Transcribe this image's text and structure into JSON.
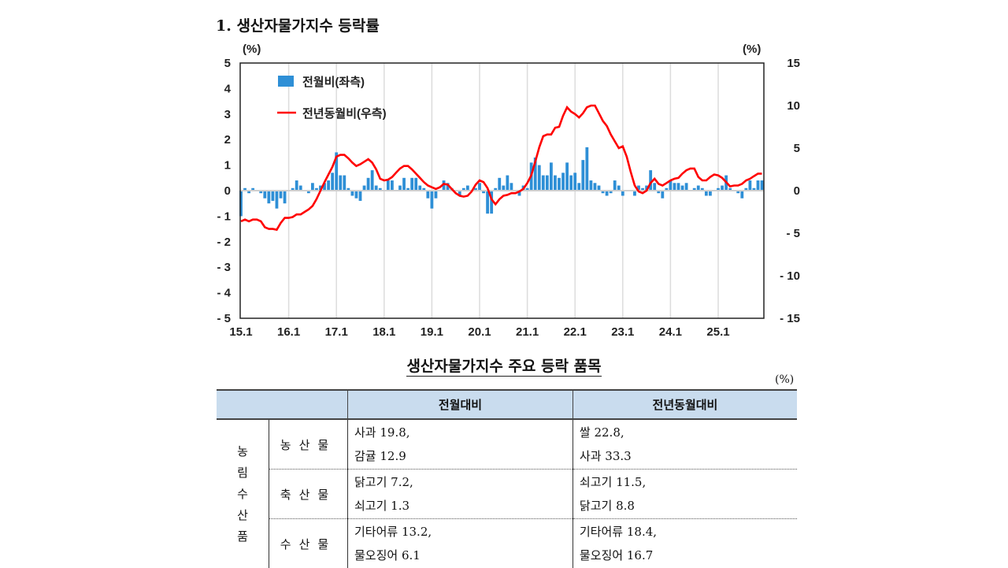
{
  "title": "1. 생산자물가지수 등락률",
  "chart_data": {
    "type": "bar+line",
    "left_axis_unit": "(%)",
    "right_axis_unit": "(%)",
    "ylim_left": [
      -5,
      5
    ],
    "ylim_right": [
      -15,
      15
    ],
    "yticks_left": [
      "5",
      "4",
      "3",
      "2",
      "1",
      "0",
      "-1",
      "-2",
      "-3",
      "-4",
      "-5"
    ],
    "yticks_right": [
      "15",
      "10",
      "5",
      "0",
      "-5",
      "-10",
      "-15"
    ],
    "xticks": [
      "15.1",
      "16.1",
      "17.1",
      "18.1",
      "19.1",
      "20.1",
      "21.1",
      "22.1",
      "23.1",
      "24.1",
      "25.1"
    ],
    "x_start": "2015-01",
    "x_end": "2025-12",
    "grid": "vertical",
    "legend_position": "top-left",
    "series": [
      {
        "name": "전월비(좌측)",
        "type": "bar",
        "axis": "left",
        "color": "#2e8fd6",
        "values": [
          -1.0,
          0.1,
          -0.1,
          0.1,
          0.0,
          -0.1,
          -0.3,
          -0.5,
          -0.4,
          -0.7,
          -0.3,
          -0.5,
          0.0,
          0.1,
          0.4,
          0.2,
          0.0,
          -0.1,
          0.3,
          0.1,
          0.2,
          0.3,
          0.4,
          0.7,
          1.5,
          0.6,
          0.6,
          0.1,
          -0.2,
          -0.3,
          -0.4,
          0.2,
          0.5,
          0.8,
          0.2,
          0.1,
          0.0,
          0.4,
          0.4,
          0.0,
          0.2,
          0.5,
          0.1,
          0.5,
          0.5,
          0.2,
          0.1,
          -0.3,
          -0.7,
          -0.3,
          0.0,
          0.4,
          0.3,
          0.1,
          0.0,
          -0.2,
          0.1,
          0.2,
          0.0,
          0.1,
          0.3,
          -0.1,
          -0.9,
          -0.9,
          0.1,
          0.5,
          0.2,
          0.6,
          0.3,
          0.0,
          -0.2,
          0.2,
          0.1,
          1.1,
          1.3,
          1.0,
          0.6,
          0.6,
          1.1,
          0.6,
          0.5,
          0.7,
          1.1,
          0.6,
          0.7,
          0.3,
          1.2,
          1.7,
          0.4,
          0.3,
          0.2,
          -0.1,
          -0.2,
          -0.1,
          0.4,
          0.2,
          -0.2,
          0.0,
          0.0,
          -0.2,
          0.2,
          0.1,
          0.2,
          0.8,
          0.3,
          -0.1,
          -0.3,
          0.1,
          0.4,
          0.3,
          0.3,
          0.2,
          0.3,
          0.0,
          0.1,
          0.2,
          0.1,
          -0.2,
          -0.2,
          0.0,
          0.1,
          0.2,
          0.6,
          0.1,
          0.0,
          -0.1,
          -0.3,
          0.1,
          0.4,
          0.1,
          0.4,
          0.4
        ]
      },
      {
        "name": "전년동월비(우측)",
        "type": "line",
        "axis": "right",
        "color": "#ff0000",
        "values": [
          -3.6,
          -3.4,
          -3.6,
          -3.4,
          -3.4,
          -3.6,
          -4.3,
          -4.5,
          -4.5,
          -4.6,
          -3.8,
          -3.2,
          -3.2,
          -3.1,
          -2.8,
          -2.8,
          -2.5,
          -2.2,
          -1.8,
          -1.0,
          0.0,
          1.0,
          1.9,
          2.8,
          4.0,
          4.2,
          4.2,
          3.8,
          3.3,
          2.9,
          3.1,
          3.4,
          3.7,
          3.3,
          2.5,
          1.4,
          1.2,
          1.3,
          1.6,
          2.1,
          2.6,
          2.9,
          2.9,
          2.5,
          2.0,
          1.5,
          1.0,
          0.6,
          0.4,
          0.2,
          0.4,
          0.8,
          0.7,
          0.2,
          -0.3,
          -0.6,
          -0.7,
          -0.6,
          -0.1,
          0.7,
          1.2,
          1.0,
          0.3,
          -1.0,
          -1.6,
          -1.0,
          -0.6,
          -0.5,
          -0.3,
          -0.3,
          -0.1,
          0.2,
          0.9,
          1.8,
          3.4,
          5.1,
          6.4,
          6.6,
          6.6,
          7.4,
          7.5,
          8.8,
          9.8,
          9.3,
          9.0,
          8.6,
          9.1,
          9.8,
          10.0,
          10.0,
          9.1,
          8.2,
          7.6,
          6.6,
          5.8,
          5.0,
          5.2,
          4.0,
          2.2,
          0.6,
          -0.1,
          -0.3,
          0.0,
          0.9,
          1.4,
          0.8,
          0.6,
          0.9,
          1.2,
          1.4,
          1.5,
          2.0,
          2.4,
          2.6,
          2.6,
          1.6,
          1.2,
          1.2,
          1.6,
          1.9,
          1.8,
          1.5,
          1.0,
          0.5,
          0.6,
          0.6,
          0.8,
          1.2,
          1.4,
          1.7,
          2.0,
          2.0
        ]
      }
    ]
  },
  "table": {
    "title": "생산자물가지수 주요 등락 품목",
    "unit": "(%)",
    "headers": [
      "",
      "전월대비",
      "전년동월대비"
    ],
    "group": "농림수산품",
    "group_chars": [
      "농",
      "림",
      "수",
      "산",
      "품"
    ],
    "rows": [
      {
        "category": "농산물",
        "mom": [
          "사과 19.8,",
          "감귤 12.9"
        ],
        "yoy": [
          "쌀 22.8,",
          "사과 33.3"
        ]
      },
      {
        "category": "축산물",
        "mom": [
          "닭고기 7.2,",
          "쇠고기 1.3"
        ],
        "yoy": [
          "쇠고기 11.5,",
          "닭고기 8.8"
        ]
      },
      {
        "category": "수산물",
        "mom": [
          "기타어류 13.2,",
          "물오징어 6.1"
        ],
        "yoy": [
          "기타어류 18.4,",
          "물오징어 16.7"
        ]
      }
    ]
  }
}
